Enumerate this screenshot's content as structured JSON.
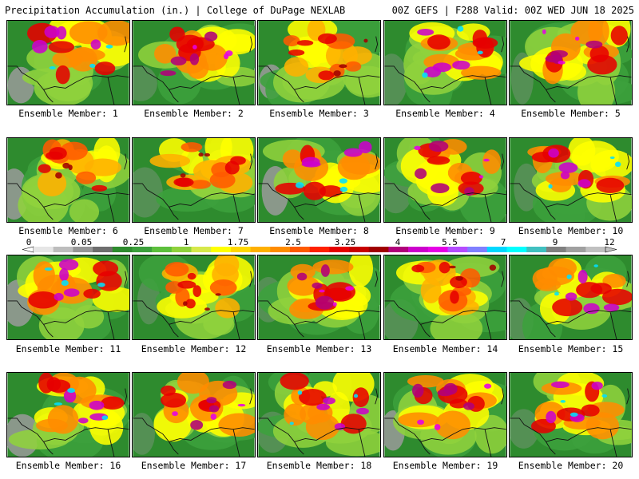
{
  "header": {
    "title_left": "Precipitation Accumulation (in.) | College of DuPage NEXLAB",
    "title_right": "00Z GEFS | F288 Valid: 00Z WED JUN 18 2025"
  },
  "panels": [
    {
      "label": "Ensemble Member: 1",
      "peak": "cyan"
    },
    {
      "label": "Ensemble Member: 2",
      "peak": "magenta"
    },
    {
      "label": "Ensemble Member: 3",
      "peak": "red"
    },
    {
      "label": "Ensemble Member: 4",
      "peak": "cyan"
    },
    {
      "label": "Ensemble Member: 5",
      "peak": "magenta"
    },
    {
      "label": "Ensemble Member: 6",
      "peak": "red"
    },
    {
      "label": "Ensemble Member: 7",
      "peak": "red"
    },
    {
      "label": "Ensemble Member: 8",
      "peak": "cyan"
    },
    {
      "label": "Ensemble Member: 9",
      "peak": "magenta"
    },
    {
      "label": "Ensemble Member: 10",
      "peak": "cyan"
    },
    {
      "label": "Ensemble Member: 11",
      "peak": "cyan"
    },
    {
      "label": "Ensemble Member: 12",
      "peak": "red"
    },
    {
      "label": "Ensemble Member: 13",
      "peak": "magenta"
    },
    {
      "label": "Ensemble Member: 14",
      "peak": "red"
    },
    {
      "label": "Ensemble Member: 15",
      "peak": "cyan"
    },
    {
      "label": "Ensemble Member: 16",
      "peak": "cyan"
    },
    {
      "label": "Ensemble Member: 17",
      "peak": "magenta"
    },
    {
      "label": "Ensemble Member: 18",
      "peak": "cyan"
    },
    {
      "label": "Ensemble Member: 19",
      "peak": "magenta"
    },
    {
      "label": "Ensemble Member: 20",
      "peak": "cyan"
    }
  ],
  "colorbar": {
    "labels": [
      "0",
      "0.05",
      "0.25",
      "1",
      "1.75",
      "2.5",
      "3.25",
      "4",
      "5.5",
      "7",
      "9",
      "12"
    ],
    "colors": [
      "#e6e6e6",
      "#bdbdbd",
      "#969696",
      "#6e6e6e",
      "#2e8b2e",
      "#3ca03c",
      "#5cbf3c",
      "#8fd13c",
      "#d6e84a",
      "#ffff00",
      "#ffd700",
      "#ffb000",
      "#ff8c00",
      "#ff5a00",
      "#ff2000",
      "#e60000",
      "#c80000",
      "#a00000",
      "#b0007a",
      "#cc00cc",
      "#e600e6",
      "#b44cff",
      "#7f7fff",
      "#00d8ff",
      "#00ffff",
      "#40c0c0",
      "#808080",
      "#a0a0a0",
      "#c0c0c0"
    ]
  }
}
